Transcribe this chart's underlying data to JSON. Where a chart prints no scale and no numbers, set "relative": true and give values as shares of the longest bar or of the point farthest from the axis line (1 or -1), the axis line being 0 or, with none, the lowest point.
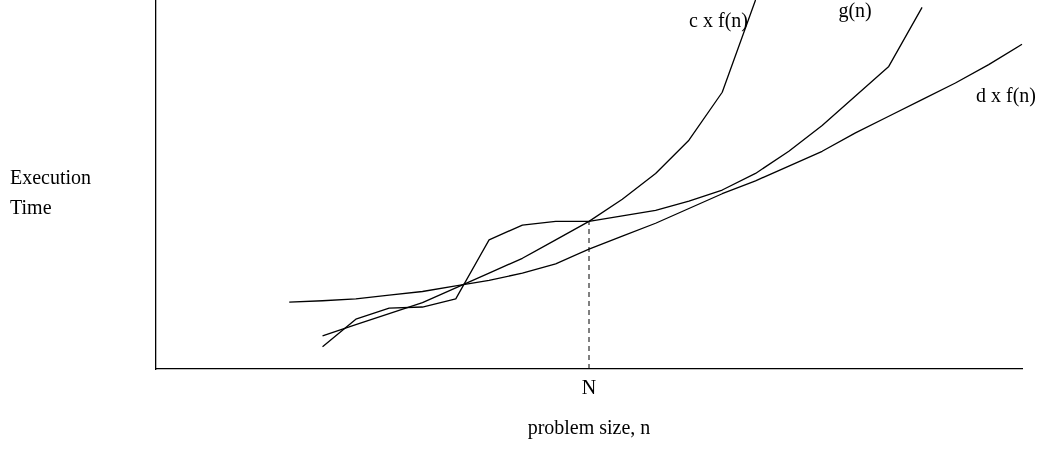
{
  "chart_data": {
    "type": "line",
    "relative": true,
    "xlabel": "problem size, n",
    "ylabel": "Execution Time",
    "legend": false,
    "grid": false,
    "marker": "none",
    "line_style": "solid",
    "categories": [
      null,
      null,
      null,
      null,
      null,
      null,
      null,
      null,
      null,
      null,
      null,
      null,
      null,
      null,
      null,
      null,
      null,
      null,
      null,
      null,
      null,
      null,
      null,
      null,
      null,
      null,
      null
    ],
    "series": [
      {
        "name": "c x f(n)",
        "color": "#000000",
        "values": [
          null,
          null,
          null,
          null,
          null,
          0.09,
          0.12,
          0.15,
          0.18,
          0.22,
          0.26,
          0.3,
          0.35,
          0.4,
          0.46,
          0.53,
          0.62,
          0.75,
          1.0,
          null,
          null,
          null,
          null,
          null,
          null,
          null,
          null
        ]
      },
      {
        "name": "g(n)",
        "color": "#000000",
        "values": [
          null,
          null,
          null,
          null,
          null,
          0.06,
          0.135,
          0.165,
          0.168,
          0.19,
          0.35,
          0.39,
          0.4,
          0.4,
          0.415,
          0.43,
          0.455,
          0.485,
          0.53,
          0.59,
          0.66,
          0.74,
          0.82,
          0.98,
          null,
          null,
          null
        ]
      },
      {
        "name": "d x f(n)",
        "color": "#000000",
        "values": [
          null,
          null,
          null,
          null,
          0.181,
          0.185,
          0.19,
          0.2,
          0.21,
          0.225,
          0.24,
          0.26,
          0.285,
          0.325,
          0.36,
          0.395,
          0.435,
          0.475,
          0.51,
          0.55,
          0.59,
          0.64,
          0.685,
          0.73,
          0.775,
          0.825,
          0.88
        ]
      }
    ],
    "ref_lines": [
      {
        "axis": "x",
        "label": "N",
        "line_style": "dashed"
      }
    ]
  }
}
